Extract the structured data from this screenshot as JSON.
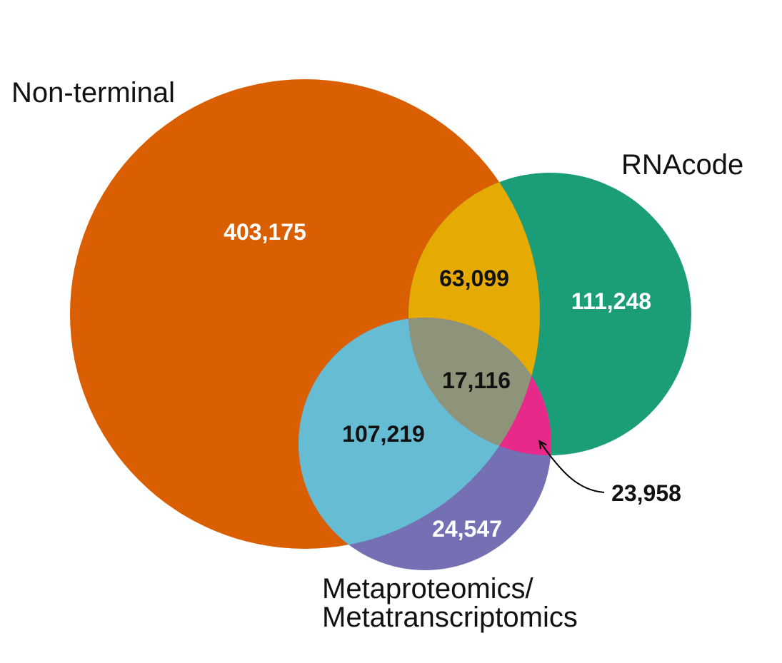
{
  "sets": [
    {
      "id": "A",
      "name": "Non-terminal",
      "color": "#D95F02"
    },
    {
      "id": "B",
      "name": "RNAcode",
      "color": "#1B9E77"
    },
    {
      "id": "C",
      "name_line1": "Metaproteomics/",
      "name_line2": "Metatranscriptomics",
      "color": "#7570B3"
    }
  ],
  "regions": {
    "A_only": {
      "value": "403,175",
      "color": "#D95F02"
    },
    "B_only": {
      "value": "111,248",
      "color": "#1B9E77"
    },
    "C_only": {
      "value": "24,547",
      "color": "#7570B3"
    },
    "AB": {
      "value": "63,099",
      "color": "#E6AB02"
    },
    "AC": {
      "value": "107,219",
      "color": "#66BCD2"
    },
    "BC": {
      "value": "23,958",
      "color": "#E7298A"
    },
    "ABC": {
      "value": "17,116",
      "color": "#8E947A"
    }
  }
}
